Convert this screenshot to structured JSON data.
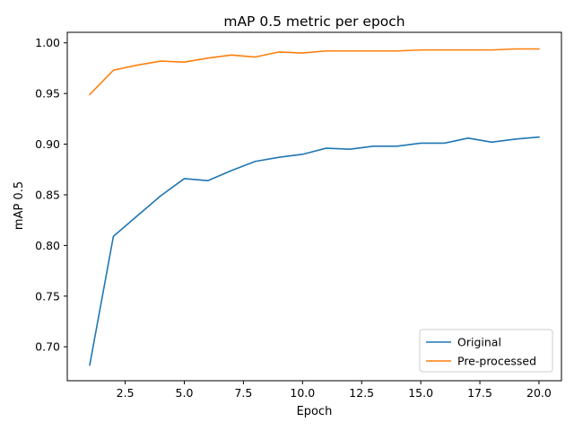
{
  "chart_data": {
    "type": "line",
    "title": "mAP 0.5 metric per epoch",
    "xlabel": "Epoch",
    "ylabel": "mAP 0.5",
    "xlim": [
      0.05,
      20.95
    ],
    "ylim": [
      0.6665,
      1.0104
    ],
    "xticks": [
      2.5,
      5.0,
      7.5,
      10.0,
      12.5,
      15.0,
      17.5,
      20.0
    ],
    "xtick_labels": [
      "2.5",
      "5.0",
      "7.5",
      "10.0",
      "12.5",
      "15.0",
      "17.5",
      "20.0"
    ],
    "yticks": [
      0.7,
      0.75,
      0.8,
      0.85,
      0.9,
      0.95,
      1.0
    ],
    "ytick_labels": [
      "0.70",
      "0.75",
      "0.80",
      "0.85",
      "0.90",
      "0.95",
      "1.00"
    ],
    "grid": false,
    "legend_position": "lower-right",
    "x": [
      1,
      2,
      3,
      4,
      5,
      6,
      7,
      8,
      9,
      10,
      11,
      12,
      13,
      14,
      15,
      16,
      17,
      18,
      19,
      20
    ],
    "series": [
      {
        "name": "Original",
        "color": "#1f77b4",
        "values": [
          0.682,
          0.809,
          0.829,
          0.849,
          0.866,
          0.864,
          0.874,
          0.883,
          0.887,
          0.89,
          0.896,
          0.895,
          0.898,
          0.898,
          0.901,
          0.901,
          0.906,
          0.902,
          0.905,
          0.907
        ]
      },
      {
        "name": "Pre-processed",
        "color": "#ff7f0e",
        "values": [
          0.949,
          0.973,
          0.978,
          0.982,
          0.981,
          0.985,
          0.988,
          0.986,
          0.991,
          0.99,
          0.992,
          0.992,
          0.992,
          0.992,
          0.993,
          0.993,
          0.993,
          0.993,
          0.994,
          0.994
        ]
      }
    ]
  }
}
